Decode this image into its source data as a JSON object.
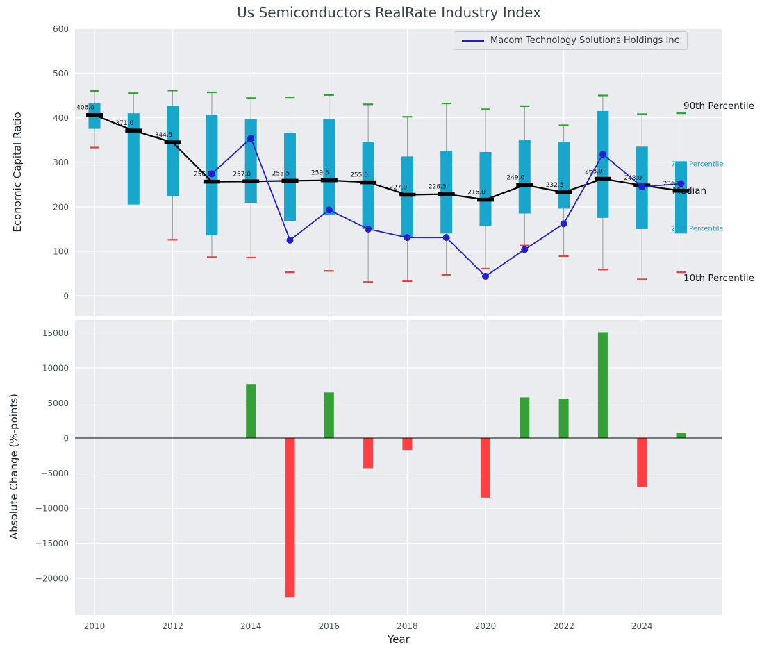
{
  "colors": {
    "panel_bg": "#eaecef",
    "grid": "#ffffff",
    "box": "#18a6cd",
    "whisker": "#9a9a9a",
    "p90_cap": "#25a825",
    "p10_cap": "#f23b3b",
    "median": "#000000",
    "macom_line": "#2222cc",
    "positive_bar": "#35a035",
    "negative_bar": "#ff4043",
    "percentile_label": "#1a9fc4"
  },
  "chart_data": [
    {
      "type": "box",
      "title": "Us Semiconductors RealRate Industry Index",
      "ylabel": "Economic Capital Ratio",
      "ylim": [
        -45,
        602
      ],
      "yticks": [
        0,
        100,
        200,
        300,
        400,
        500,
        600
      ],
      "xticks": [
        2010,
        2012,
        2014,
        2016,
        2018,
        2020,
        2022,
        2024
      ],
      "grid": true,
      "legend_position": "upper right",
      "years": [
        2010,
        2011,
        2012,
        2013,
        2014,
        2015,
        2016,
        2017,
        2018,
        2019,
        2020,
        2021,
        2022,
        2023,
        2024,
        2025
      ],
      "percentile_90": [
        460,
        455,
        461,
        457,
        444,
        446,
        451,
        430,
        402,
        432,
        419,
        426,
        383,
        450,
        408,
        410
      ],
      "percentile_75": [
        432,
        410,
        427,
        407,
        397,
        366,
        397,
        346,
        313,
        326,
        323,
        351,
        346,
        415,
        335,
        302
      ],
      "median": [
        406,
        371,
        344.5,
        256.5,
        257,
        258.5,
        259.5,
        255,
        227,
        228.5,
        216,
        249,
        232.5,
        263,
        248,
        236
      ],
      "percentile_25": [
        375,
        205,
        224,
        136,
        209,
        168,
        181,
        150,
        131,
        140,
        157,
        185,
        196,
        175,
        150,
        140
      ],
      "percentile_10": [
        333,
        256,
        126,
        87,
        86,
        53,
        56,
        31,
        33,
        47,
        61,
        113,
        89,
        59,
        37,
        53
      ],
      "series": [
        {
          "name": "Macom Technology Solutions Holdings Inc",
          "x": [
            2013,
            2014,
            2015,
            2016,
            2017,
            2018,
            2019,
            2020,
            2021,
            2022,
            2023,
            2024,
            2025
          ],
          "values": [
            274,
            354,
            125,
            193,
            150,
            131,
            131,
            44,
            104,
            162,
            318,
            245,
            252
          ]
        }
      ],
      "annotations": {
        "p90": "90th Percentile",
        "p75": "75th Percentile",
        "median": "Median",
        "p25": "25th Percentile",
        "p10": "10th Percentile"
      }
    },
    {
      "type": "bar",
      "ylabel": "Absolute Change (%-points)",
      "xlabel": "Year",
      "ylim": [
        -25250,
        16800
      ],
      "yticks": [
        -20000,
        -15000,
        -10000,
        -5000,
        0,
        5000,
        10000,
        15000
      ],
      "xticks": [
        2010,
        2012,
        2014,
        2016,
        2018,
        2020,
        2022,
        2024
      ],
      "grid": true,
      "years": [
        2010,
        2011,
        2012,
        2013,
        2014,
        2015,
        2016,
        2017,
        2018,
        2019,
        2020,
        2021,
        2022,
        2023,
        2024,
        2025
      ],
      "values": [
        0,
        0,
        0,
        0,
        7700,
        -22700,
        6500,
        -4300,
        -1700,
        0,
        -8500,
        5800,
        5600,
        15100,
        -7000,
        700
      ]
    }
  ]
}
